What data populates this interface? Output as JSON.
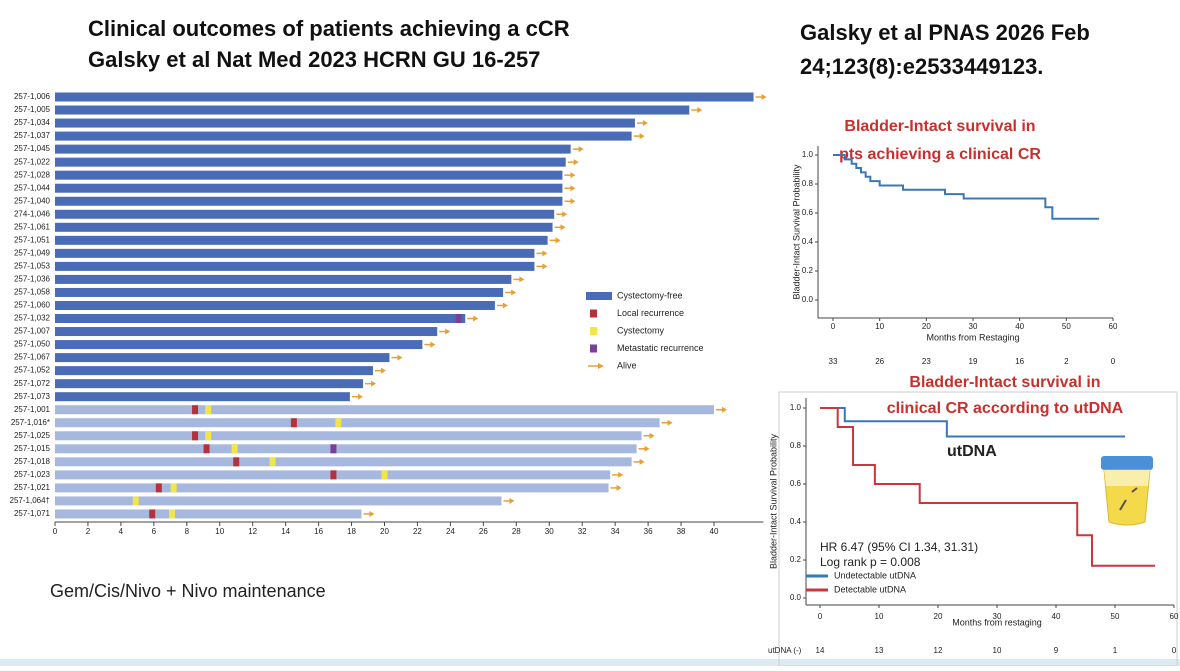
{
  "slide": {
    "title_lines": [
      "Clinical outcomes of patients achieving a cCR",
      "Galsky et al Nat Med 2023 HCRN GU 16-257"
    ],
    "citation_lines": [
      "Galsky et al PNAS 2026 Feb",
      "24;123(8):e2533449123."
    ],
    "footnote": "Gem/Cis/Nivo + Nivo maintenance"
  },
  "chart_data": [
    {
      "type": "swimmer",
      "categories": [
        "257-1,006",
        "257-1,005",
        "257-1,034",
        "257-1,037",
        "257-1,045",
        "257-1,022",
        "257-1,028",
        "257-1,044",
        "257-1,040",
        "274-1,046",
        "257-1,061",
        "257-1,051",
        "257-1,049",
        "257-1,053",
        "257-1,036",
        "257-1,058",
        "257-1,060",
        "257-1,032",
        "257-1,007",
        "257-1,050",
        "257-1,067",
        "257-1,052",
        "257-1,072",
        "257-1,073",
        "257-1,001",
        "257-1,016*",
        "257-1,025",
        "257-1,015",
        "257-1,018",
        "257-1,023",
        "257-1,021",
        "257-1,064†",
        "257-1,071"
      ],
      "values": [
        42.4,
        38.5,
        35.2,
        35.0,
        31.3,
        31.0,
        30.8,
        30.8,
        30.8,
        30.3,
        30.2,
        29.9,
        29.1,
        29.1,
        27.7,
        27.2,
        26.7,
        24.9,
        23.2,
        22.3,
        20.3,
        19.3,
        18.7,
        17.9,
        40.0,
        36.7,
        35.6,
        35.3,
        35.0,
        33.7,
        33.6,
        27.1,
        18.6
      ],
      "bar_colors": [
        "#4a6bb5",
        "#4a6bb5",
        "#4a6bb5",
        "#4a6bb5",
        "#4a6bb5",
        "#4a6bb5",
        "#4a6bb5",
        "#4a6bb5",
        "#4a6bb5",
        "#4a6bb5",
        "#4a6bb5",
        "#4a6bb5",
        "#4a6bb5",
        "#4a6bb5",
        "#4a6bb5",
        "#4a6bb5",
        "#4a6bb5",
        "#4a6bb5",
        "#4a6bb5",
        "#4a6bb5",
        "#4a6bb5",
        "#4a6bb5",
        "#4a6bb5",
        "#4a6bb5",
        "#a7b8de",
        "#a7b8de",
        "#a7b8de",
        "#a7b8de",
        "#a7b8de",
        "#a7b8de",
        "#a7b8de",
        "#a7b8de",
        "#a7b8de"
      ],
      "series": [
        {
          "name": "Cystectomy-free",
          "color": "#4a6bb5"
        }
      ],
      "events": [
        {
          "name": "Local recurrence",
          "color": "#b5323c",
          "values": [
            null,
            null,
            null,
            null,
            null,
            null,
            null,
            null,
            null,
            null,
            null,
            null,
            null,
            null,
            null,
            null,
            null,
            null,
            null,
            null,
            null,
            null,
            null,
            null,
            8.5,
            14.5,
            8.5,
            9.2,
            11.0,
            16.9,
            6.3,
            null,
            5.9
          ]
        },
        {
          "name": "Cystectomy",
          "color": "#f2e54a",
          "values": [
            null,
            null,
            null,
            null,
            null,
            null,
            null,
            null,
            null,
            null,
            null,
            null,
            null,
            null,
            null,
            null,
            null,
            null,
            null,
            null,
            null,
            null,
            null,
            null,
            9.3,
            17.2,
            9.3,
            10.9,
            13.2,
            20.0,
            7.2,
            4.9,
            7.1
          ]
        },
        {
          "name": "Metastatic recurrence",
          "color": "#7b3f98",
          "values": [
            null,
            null,
            null,
            null,
            null,
            null,
            null,
            null,
            null,
            null,
            null,
            null,
            null,
            null,
            null,
            null,
            null,
            24.5,
            null,
            null,
            null,
            null,
            null,
            null,
            null,
            null,
            null,
            16.9,
            null,
            null,
            null,
            null,
            null
          ]
        }
      ],
      "alive": {
        "name": "Alive",
        "color": "#e8a033"
      },
      "xlim": [
        0,
        43
      ],
      "xticks": [
        0,
        2,
        4,
        6,
        8,
        10,
        12,
        14,
        16,
        18,
        20,
        22,
        24,
        26,
        28,
        30,
        32,
        34,
        36,
        38,
        40
      ]
    },
    {
      "type": "km",
      "title_lines": [
        "Bladder-Intact survival in",
        "pts achieving a clinical CR"
      ],
      "ylabel": "Bladder-Intact Survival Probability",
      "xlabel": "Months from Restaging",
      "series": [
        {
          "name": null,
          "color": "#3a78b5",
          "x": [
            0,
            2.5,
            4,
            5,
            6,
            7,
            8,
            10,
            15,
            24,
            28,
            45,
            45.5,
            47,
            57
          ],
          "values": [
            1.0,
            0.97,
            0.94,
            0.91,
            0.88,
            0.85,
            0.82,
            0.79,
            0.76,
            0.73,
            0.7,
            0.7,
            0.64,
            0.56,
            0.56
          ]
        }
      ],
      "xlim": [
        0,
        60
      ],
      "xticks": [
        0,
        10,
        20,
        30,
        40,
        50,
        60
      ],
      "ylim": [
        0,
        1
      ],
      "yticks": [
        {
          "value": 0,
          "label": "0.0"
        },
        0.2,
        0.4,
        0.6,
        0.8,
        {
          "value": 1,
          "label": "1.0"
        }
      ],
      "risk_rows": [
        {
          "label": null,
          "values": [
            33,
            26,
            23,
            19,
            16,
            2,
            0
          ]
        }
      ]
    },
    {
      "type": "km",
      "title_lines": [
        "Bladder-Intact survival in",
        "clinical CR according to utDNA"
      ],
      "ylabel": "Bladder-Intact Survival Probability",
      "xlabel": "Months from restaging",
      "annotations": [
        "HR 6.47 (95% CI 1.34, 31.31)",
        "Log rank p = 0.008",
        "utDNA"
      ],
      "series": [
        {
          "name": "Undetectable utDNA",
          "color": "#3a78b5",
          "x": [
            0,
            4.2,
            21.5,
            51.7
          ],
          "values": [
            1.0,
            0.93,
            0.85,
            0.85
          ]
        },
        {
          "name": "Detectable utDNA",
          "color": "#c8373a",
          "x": [
            0,
            3.0,
            5.6,
            9.3,
            16.9,
            43.6,
            46.1,
            56.8
          ],
          "values": [
            1.0,
            0.9,
            0.7,
            0.6,
            0.5,
            0.33,
            0.17,
            0.17
          ]
        }
      ],
      "xlim": [
        0,
        60
      ],
      "xticks": [
        0,
        10,
        20,
        30,
        40,
        50,
        60
      ],
      "ylim": [
        0,
        1
      ],
      "yticks": [
        {
          "value": 0,
          "label": "0.0"
        },
        0.2,
        0.4,
        0.6,
        0.8,
        {
          "value": 1,
          "label": "1.0"
        }
      ],
      "risk_rows": [
        {
          "label": "utDNA (-)",
          "values": [
            14,
            13,
            12,
            10,
            9,
            1,
            0
          ]
        }
      ]
    }
  ]
}
